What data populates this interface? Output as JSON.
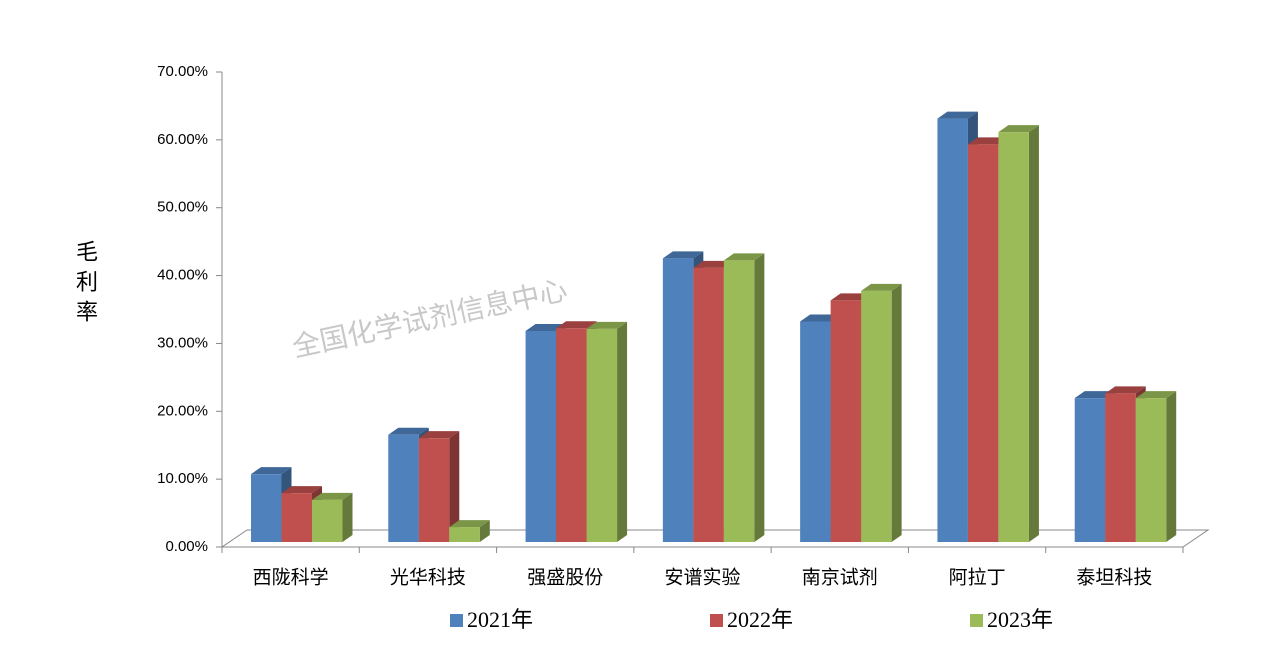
{
  "chart_data": {
    "type": "bar3d",
    "y_label": "毛利率",
    "watermark": "全国化学试剂信息中心",
    "categories": [
      "西陇科学",
      "光华科技",
      "强盛股份",
      "安谱实验",
      "南京试剂",
      "阿拉丁",
      "泰坦科技"
    ],
    "series": [
      {
        "name": "2021年",
        "color": "#4f81bd",
        "values": [
          10.0,
          15.8,
          31.1,
          41.8,
          32.5,
          62.4,
          21.2
        ]
      },
      {
        "name": "2022年",
        "color": "#c0504d",
        "values": [
          7.2,
          15.3,
          31.5,
          40.4,
          35.6,
          58.6,
          21.9
        ]
      },
      {
        "name": "2023年",
        "color": "#9bbb59",
        "values": [
          6.2,
          2.2,
          31.4,
          41.5,
          37.0,
          60.4,
          21.2
        ]
      }
    ],
    "ylim": [
      0,
      70
    ],
    "yticks": [
      {
        "value": 0,
        "label": "0.00%"
      },
      {
        "value": 10,
        "label": "10.00%"
      },
      {
        "value": 20,
        "label": "20.00%"
      },
      {
        "value": 30,
        "label": "30.00%"
      },
      {
        "value": 40,
        "label": "40.00%"
      },
      {
        "value": 50,
        "label": "50.00%"
      },
      {
        "value": 60,
        "label": "60.00%"
      },
      {
        "value": 70,
        "label": "70.00%"
      }
    ],
    "legend": "bottom"
  }
}
